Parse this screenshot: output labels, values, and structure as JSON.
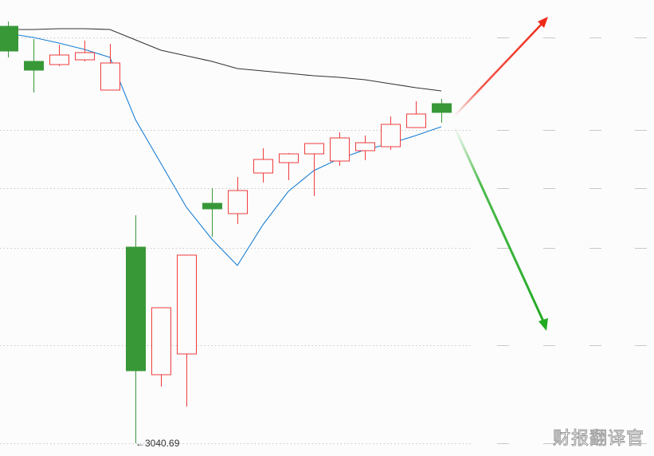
{
  "chart_data": {
    "type": "candlestick",
    "title": "",
    "xlabel": "",
    "ylabel": "",
    "ylim": [
      3032.69,
      3318.69
    ],
    "grid": true,
    "grid_levels": [
      3295.19,
      3237.19,
      3200.69,
      3163.19,
      3102.19,
      3040.69
    ],
    "up_color": "#f03c3c",
    "down_color": "#389838",
    "candles": [
      {
        "o": 3302.19,
        "h": 3305.19,
        "l": 3282.69,
        "c": 3286.69
      },
      {
        "o": 3280.19,
        "h": 3294.19,
        "l": 3260.69,
        "c": 3274.69
      },
      {
        "o": 3278.19,
        "h": 3290.69,
        "l": 3277.19,
        "c": 3284.19
      },
      {
        "o": 3281.19,
        "h": 3293.19,
        "l": 3280.19,
        "c": 3285.69
      },
      {
        "o": 3262.19,
        "h": 3291.19,
        "l": 3262.19,
        "c": 3279.19
      },
      {
        "o": 3163.69,
        "h": 3183.69,
        "l": 3040.69,
        "c": 3086.19
      },
      {
        "o": 3083.69,
        "h": 3125.69,
        "l": 3076.19,
        "c": 3125.69
      },
      {
        "o": 3096.69,
        "h": 3158.69,
        "l": 3063.69,
        "c": 3158.69
      },
      {
        "o": 3191.19,
        "h": 3200.69,
        "l": 3170.19,
        "c": 3187.69
      },
      {
        "o": 3184.69,
        "h": 3207.69,
        "l": 3178.19,
        "c": 3199.19
      },
      {
        "o": 3210.19,
        "h": 3225.69,
        "l": 3204.19,
        "c": 3218.69
      },
      {
        "o": 3216.69,
        "h": 3222.69,
        "l": 3205.69,
        "c": 3222.19
      },
      {
        "o": 3222.19,
        "h": 3228.69,
        "l": 3195.69,
        "c": 3228.69
      },
      {
        "o": 3217.69,
        "h": 3235.69,
        "l": 3214.69,
        "c": 3232.19
      },
      {
        "o": 3224.19,
        "h": 3233.69,
        "l": 3218.19,
        "c": 3229.19
      },
      {
        "o": 3226.69,
        "h": 3245.69,
        "l": 3224.69,
        "c": 3240.69
      },
      {
        "o": 3238.69,
        "h": 3255.19,
        "l": 3238.69,
        "c": 3247.19
      },
      {
        "o": 3253.69,
        "h": 3256.69,
        "l": 3241.69,
        "c": 3248.19
      }
    ],
    "lines": [
      {
        "color": "#1a7fd4",
        "values": [
          3297.69,
          3295.19,
          3291.69,
          3287.69,
          3282.69,
          3243.69,
          3216.19,
          3188.69,
          3168.69,
          3152.19,
          3177.69,
          3198.69,
          3211.69,
          3219.19,
          3224.69,
          3228.69,
          3233.69,
          3239.19
        ]
      },
      {
        "color": "#333333",
        "values": [
          3300.19,
          3300.19,
          3300.69,
          3300.69,
          3300.19,
          3293.69,
          3287.19,
          3283.69,
          3280.19,
          3275.69,
          3274.19,
          3272.69,
          3271.19,
          3270.19,
          3268.69,
          3266.19,
          3263.69,
          3261.69
        ]
      }
    ],
    "low_annotation": {
      "value": 3040.69,
      "label": "3040.69"
    },
    "projection_arrows": [
      {
        "direction": "up",
        "color": "#f02a1a"
      },
      {
        "direction": "down",
        "color": "#22aa22"
      }
    ]
  },
  "watermark": "财报翻译官"
}
